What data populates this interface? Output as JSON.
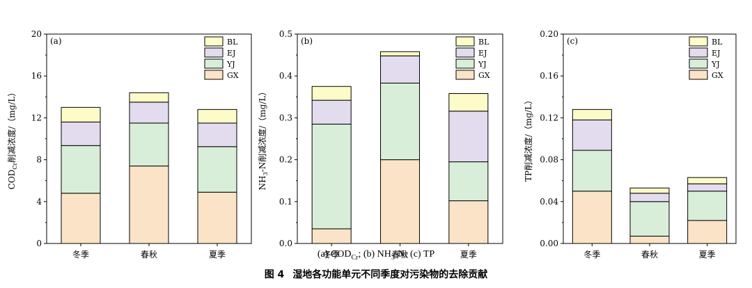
{
  "colors": {
    "GX": "#fbe3c8",
    "YJ": "#d8eed8",
    "EJ": "#e2dcee",
    "BL": "#fdfbc8",
    "stroke": "#000000"
  },
  "legend_order": [
    "BL",
    "EJ",
    "YJ",
    "GX"
  ],
  "stack_order": [
    "GX",
    "YJ",
    "EJ",
    "BL"
  ],
  "chart_data": [
    {
      "type": "bar",
      "stacked": true,
      "panel": "(a)",
      "ylabel": "COD",
      "ylabel_sub": "Cr",
      "ylabel_rest": "削减浓度/（mg/L）",
      "ylim": [
        0,
        20
      ],
      "yticks": [
        "0",
        "4",
        "8",
        "12",
        "16",
        "20"
      ],
      "categories": [
        "冬季",
        "春秋",
        "夏季"
      ],
      "series": [
        {
          "name": "GX",
          "values": [
            4.8,
            7.4,
            4.9
          ]
        },
        {
          "name": "YJ",
          "values": [
            4.55,
            4.1,
            4.35
          ]
        },
        {
          "name": "EJ",
          "values": [
            2.25,
            2.0,
            2.25
          ]
        },
        {
          "name": "BL",
          "values": [
            1.4,
            0.9,
            1.3
          ]
        }
      ]
    },
    {
      "type": "bar",
      "stacked": true,
      "panel": "(b)",
      "ylabel": "NH",
      "ylabel_sub": "3",
      "ylabel_rest": "-N削减浓度/（mg/L）",
      "ylim": [
        0,
        0.5
      ],
      "yticks": [
        "0.0",
        "0.1",
        "0.2",
        "0.3",
        "0.4",
        "0.5"
      ],
      "categories": [
        "冬季",
        "春秋",
        "夏季"
      ],
      "series": [
        {
          "name": "GX",
          "values": [
            0.035,
            0.2,
            0.102
          ]
        },
        {
          "name": "YJ",
          "values": [
            0.25,
            0.183,
            0.093
          ]
        },
        {
          "name": "EJ",
          "values": [
            0.057,
            0.065,
            0.121
          ]
        },
        {
          "name": "BL",
          "values": [
            0.033,
            0.01,
            0.042
          ]
        }
      ]
    },
    {
      "type": "bar",
      "stacked": true,
      "panel": "(c)",
      "ylabel": "TP削减浓度/（mg/L）",
      "ylabel_sub": "",
      "ylabel_rest": "",
      "ylim": [
        0,
        0.2
      ],
      "yticks": [
        "0.00",
        "0.04",
        "0.08",
        "0.12",
        "0.16",
        "0.20"
      ],
      "categories": [
        "冬季",
        "春秋",
        "夏季"
      ],
      "series": [
        {
          "name": "GX",
          "values": [
            0.05,
            0.007,
            0.022
          ]
        },
        {
          "name": "YJ",
          "values": [
            0.039,
            0.033,
            0.028
          ]
        },
        {
          "name": "EJ",
          "values": [
            0.029,
            0.008,
            0.007
          ]
        },
        {
          "name": "BL",
          "values": [
            0.01,
            0.005,
            0.006
          ]
        }
      ]
    }
  ],
  "caption": {
    "sub_a": "(a) COD",
    "sub_a_sub": "Cr",
    "sub_b": "; (b) NH",
    "sub_b_sub": "3",
    "sub_c": "-N; (c) TP",
    "fig_no": "图 4",
    "fig_title": "湿地各功能单元不同季度对污染物的去除贡献"
  }
}
